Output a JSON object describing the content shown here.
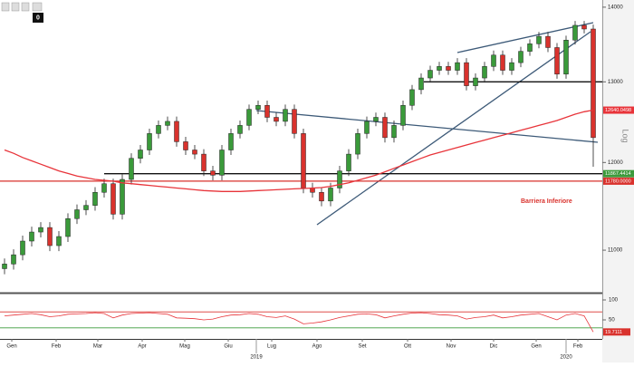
{
  "chart_data": {
    "type": "candlestick",
    "categories": [
      null,
      null,
      null,
      null,
      null,
      null,
      null,
      null,
      null,
      null,
      null,
      null,
      null,
      null,
      null,
      null,
      null,
      null,
      null,
      null,
      null,
      null,
      null,
      null,
      null,
      null,
      null,
      null,
      null,
      null,
      null,
      null,
      null,
      null,
      null,
      null,
      null,
      null,
      null,
      null,
      null,
      null,
      null,
      null,
      null,
      null,
      null,
      null,
      null,
      null,
      null,
      null,
      null,
      null,
      null,
      null,
      null,
      null,
      null,
      null,
      null,
      null,
      null,
      null,
      null,
      null
    ],
    "open": [
      10800,
      10850,
      10950,
      11100,
      11200,
      11250,
      11050,
      11150,
      11350,
      11450,
      11500,
      11650,
      11750,
      11400,
      11800,
      12050,
      12150,
      12350,
      12450,
      12500,
      12250,
      12150,
      12100,
      11900,
      11850,
      12150,
      12350,
      12450,
      12650,
      12700,
      12550,
      12500,
      12650,
      12350,
      11700,
      11650,
      11550,
      11700,
      11900,
      12100,
      12350,
      12500,
      12550,
      12300,
      12450,
      12700,
      12900,
      13050,
      13150,
      13200,
      13150,
      13250,
      12950,
      13050,
      13200,
      13350,
      13150,
      13250,
      13400,
      13500,
      13600,
      13450,
      13100,
      13550,
      13750,
      13700
    ],
    "high": [
      10910,
      11010,
      11160,
      11260,
      11310,
      11310,
      11210,
      11410,
      11510,
      11560,
      11710,
      11810,
      11810,
      11860,
      12110,
      12210,
      12410,
      12510,
      12560,
      12560,
      12310,
      12210,
      12160,
      11960,
      12210,
      12410,
      12510,
      12710,
      12760,
      12760,
      12610,
      12710,
      12710,
      12410,
      11760,
      11710,
      11760,
      11960,
      12160,
      12410,
      12560,
      12610,
      12610,
      12510,
      12760,
      12960,
      13110,
      13210,
      13260,
      13260,
      13310,
      13310,
      13110,
      13260,
      13410,
      13410,
      13310,
      13460,
      13560,
      13660,
      13660,
      13510,
      13610,
      13810,
      13810,
      13760
    ],
    "low": [
      10740,
      10790,
      10890,
      11040,
      11140,
      10990,
      10990,
      11090,
      11290,
      11390,
      11440,
      11590,
      11340,
      11340,
      11740,
      11990,
      12090,
      12290,
      12390,
      12190,
      12090,
      12040,
      11840,
      11790,
      11790,
      12090,
      12290,
      12390,
      12590,
      12490,
      12440,
      12440,
      12290,
      11640,
      11590,
      11490,
      11490,
      11640,
      11840,
      12040,
      12290,
      12440,
      12240,
      12240,
      12390,
      12640,
      12840,
      12990,
      13090,
      13090,
      13090,
      12890,
      12890,
      12990,
      13140,
      13090,
      13090,
      13190,
      13340,
      13440,
      13390,
      13040,
      13040,
      13490,
      13640,
      11950
    ],
    "close": [
      10850,
      10950,
      11100,
      11200,
      11250,
      11050,
      11150,
      11350,
      11450,
      11500,
      11650,
      11750,
      11400,
      11800,
      12050,
      12150,
      12350,
      12450,
      12500,
      12250,
      12150,
      12100,
      11900,
      11850,
      12150,
      12350,
      12450,
      12650,
      12700,
      12550,
      12500,
      12650,
      12350,
      11700,
      11650,
      11550,
      11700,
      11900,
      12100,
      12350,
      12500,
      12550,
      12300,
      12450,
      12700,
      12900,
      13050,
      13150,
      13200,
      13150,
      13250,
      12950,
      13050,
      13200,
      13350,
      13150,
      13250,
      13400,
      13500,
      13600,
      13450,
      13100,
      13550,
      13750,
      13700,
      12300
    ],
    "up_color": "#3a9a3a",
    "down_color": "#d9322d",
    "moving_average": {
      "color": "#e8343a",
      "values": [
        12150,
        12110,
        12060,
        12020,
        11980,
        11940,
        11900,
        11870,
        11840,
        11820,
        11800,
        11790,
        11780,
        11760,
        11750,
        11740,
        11730,
        11720,
        11710,
        11700,
        11690,
        11680,
        11670,
        11665,
        11660,
        11660,
        11660,
        11665,
        11670,
        11675,
        11680,
        11685,
        11690,
        11695,
        11700,
        11705,
        11720,
        11740,
        11760,
        11790,
        11820,
        11850,
        11890,
        11930,
        11970,
        12010,
        12050,
        12090,
        12120,
        12150,
        12180,
        12210,
        12240,
        12270,
        12300,
        12330,
        12360,
        12390,
        12420,
        12450,
        12480,
        12510,
        12550,
        12590,
        12620,
        12640.0498
      ]
    },
    "levels": [
      13000,
      11867.4414,
      {
        "value": 11780,
        "label": "11780.0000"
      }
    ],
    "annotation": "Barriera Inferiore",
    "ylim": [
      10555,
      14100
    ],
    "yticks": [
      11000,
      12000,
      13000,
      14000
    ],
    "log_scale": true,
    "y_axis_label": "Log",
    "xticks": [
      {
        "value": 0.8,
        "label": "Gen"
      },
      {
        "value": 5.7,
        "label": "Feb"
      },
      {
        "value": 10.3,
        "label": "Mar"
      },
      {
        "value": 15.2,
        "label": "Apr"
      },
      {
        "value": 19.9,
        "label": "Mag"
      },
      {
        "value": 24.7,
        "label": "Giu"
      },
      {
        "value": 29.5,
        "label": "Lug"
      },
      {
        "value": 34.5,
        "label": "Ago"
      },
      {
        "value": 39.5,
        "label": "Set"
      },
      {
        "value": 44.5,
        "label": "Ott"
      },
      {
        "value": 49.3,
        "label": "Nov"
      },
      {
        "value": 54,
        "label": "Dic"
      },
      {
        "value": 58.7,
        "label": "Gen"
      },
      {
        "value": 63.3,
        "label": "Feb"
      }
    ],
    "year_ticks": [
      {
        "value": 27.8,
        "label": "2019"
      },
      {
        "value": 62,
        "label": "2020"
      }
    ],
    "rsi": {
      "color": "#e8343a",
      "values": [
        60,
        62,
        64,
        66,
        63,
        58,
        60,
        64,
        65,
        66,
        68,
        66,
        55,
        62,
        66,
        67,
        68,
        66,
        64,
        55,
        54,
        53,
        50,
        52,
        58,
        62,
        63,
        66,
        64,
        58,
        56,
        60,
        52,
        40,
        42,
        45,
        50,
        56,
        60,
        64,
        65,
        63,
        55,
        60,
        64,
        67,
        68,
        66,
        63,
        62,
        60,
        52,
        56,
        58,
        62,
        55,
        58,
        62,
        64,
        66,
        58,
        50,
        62,
        66,
        60,
        19.7111
      ],
      "ylim": [
        0,
        100
      ],
      "yticks": [
        50,
        100
      ],
      "upper": 70,
      "lower": 30
    },
    "toolbar_badge": "0"
  }
}
